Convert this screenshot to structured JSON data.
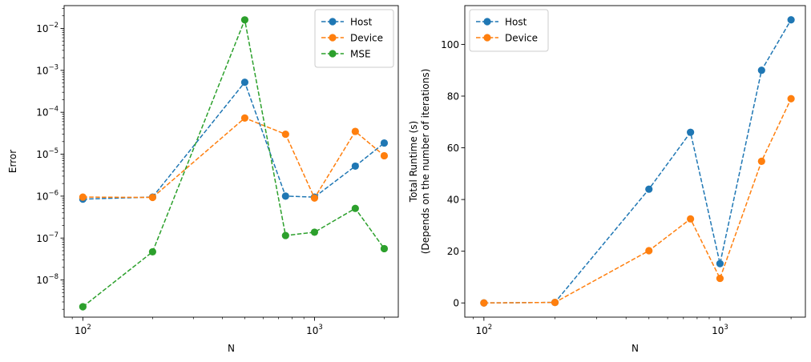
{
  "chart_data": [
    {
      "type": "line",
      "xlabel": "N",
      "ylabel": "Error",
      "xscale": "log",
      "yscale": "log",
      "xlim": [
        83,
        2300
      ],
      "ylim": [
        1.3e-09,
        0.035
      ],
      "x_ticks": [
        {
          "base": "10",
          "exp": "2",
          "value": 100
        },
        {
          "base": "10",
          "exp": "3",
          "value": 1000
        }
      ],
      "y_ticks": [
        {
          "base": "10",
          "exp": "−8",
          "value": 1e-08
        },
        {
          "base": "10",
          "exp": "−7",
          "value": 1e-07
        },
        {
          "base": "10",
          "exp": "−6",
          "value": 1e-06
        },
        {
          "base": "10",
          "exp": "−5",
          "value": 1e-05
        },
        {
          "base": "10",
          "exp": "−4",
          "value": 0.0001
        },
        {
          "base": "10",
          "exp": "−3",
          "value": 0.001
        },
        {
          "base": "10",
          "exp": "−2",
          "value": 0.01
        }
      ],
      "legend_position": "top-right",
      "grid": false,
      "x": [
        100,
        200,
        500,
        750,
        1000,
        1500,
        2000
      ],
      "series": [
        {
          "name": "Host",
          "color": "#1f77b4",
          "values": [
            8.5e-07,
            9.5e-07,
            0.00052,
            1e-06,
            9.5e-07,
            5.2e-06,
            1.85e-05
          ]
        },
        {
          "name": "Device",
          "color": "#ff7f0e",
          "values": [
            9.5e-07,
            9.3e-07,
            7.3e-05,
            3e-05,
            9e-07,
            3.5e-05,
            9.2e-06
          ]
        },
        {
          "name": "MSE",
          "color": "#2ca02c",
          "values": [
            2.3e-09,
            4.7e-08,
            0.016,
            1.15e-07,
            1.38e-07,
            5.1e-07,
            5.6e-08
          ]
        }
      ]
    },
    {
      "type": "line",
      "xlabel": "N",
      "ylabel": [
        "Total Runtime (s)",
        "(Depends on the number of iterations)"
      ],
      "xscale": "log",
      "yscale": "linear",
      "xlim": [
        83,
        2300
      ],
      "ylim": [
        -5.5,
        115
      ],
      "x_ticks": [
        {
          "base": "10",
          "exp": "2",
          "value": 100
        },
        {
          "base": "10",
          "exp": "3",
          "value": 1000
        }
      ],
      "y_ticks": [
        {
          "label": "0",
          "value": 0
        },
        {
          "label": "20",
          "value": 20
        },
        {
          "label": "40",
          "value": 40
        },
        {
          "label": "60",
          "value": 60
        },
        {
          "label": "80",
          "value": 80
        },
        {
          "label": "100",
          "value": 100
        }
      ],
      "legend_position": "top-left",
      "grid": false,
      "x": [
        100,
        200,
        500,
        750,
        1000,
        1500,
        2000
      ],
      "series": [
        {
          "name": "Host",
          "color": "#1f77b4",
          "values": [
            0.0,
            0.2,
            44.0,
            66.0,
            15.2,
            90.0,
            109.5
          ]
        },
        {
          "name": "Device",
          "color": "#ff7f0e",
          "values": [
            0.0,
            0.2,
            20.2,
            32.5,
            9.5,
            54.8,
            79.0
          ]
        }
      ]
    }
  ]
}
